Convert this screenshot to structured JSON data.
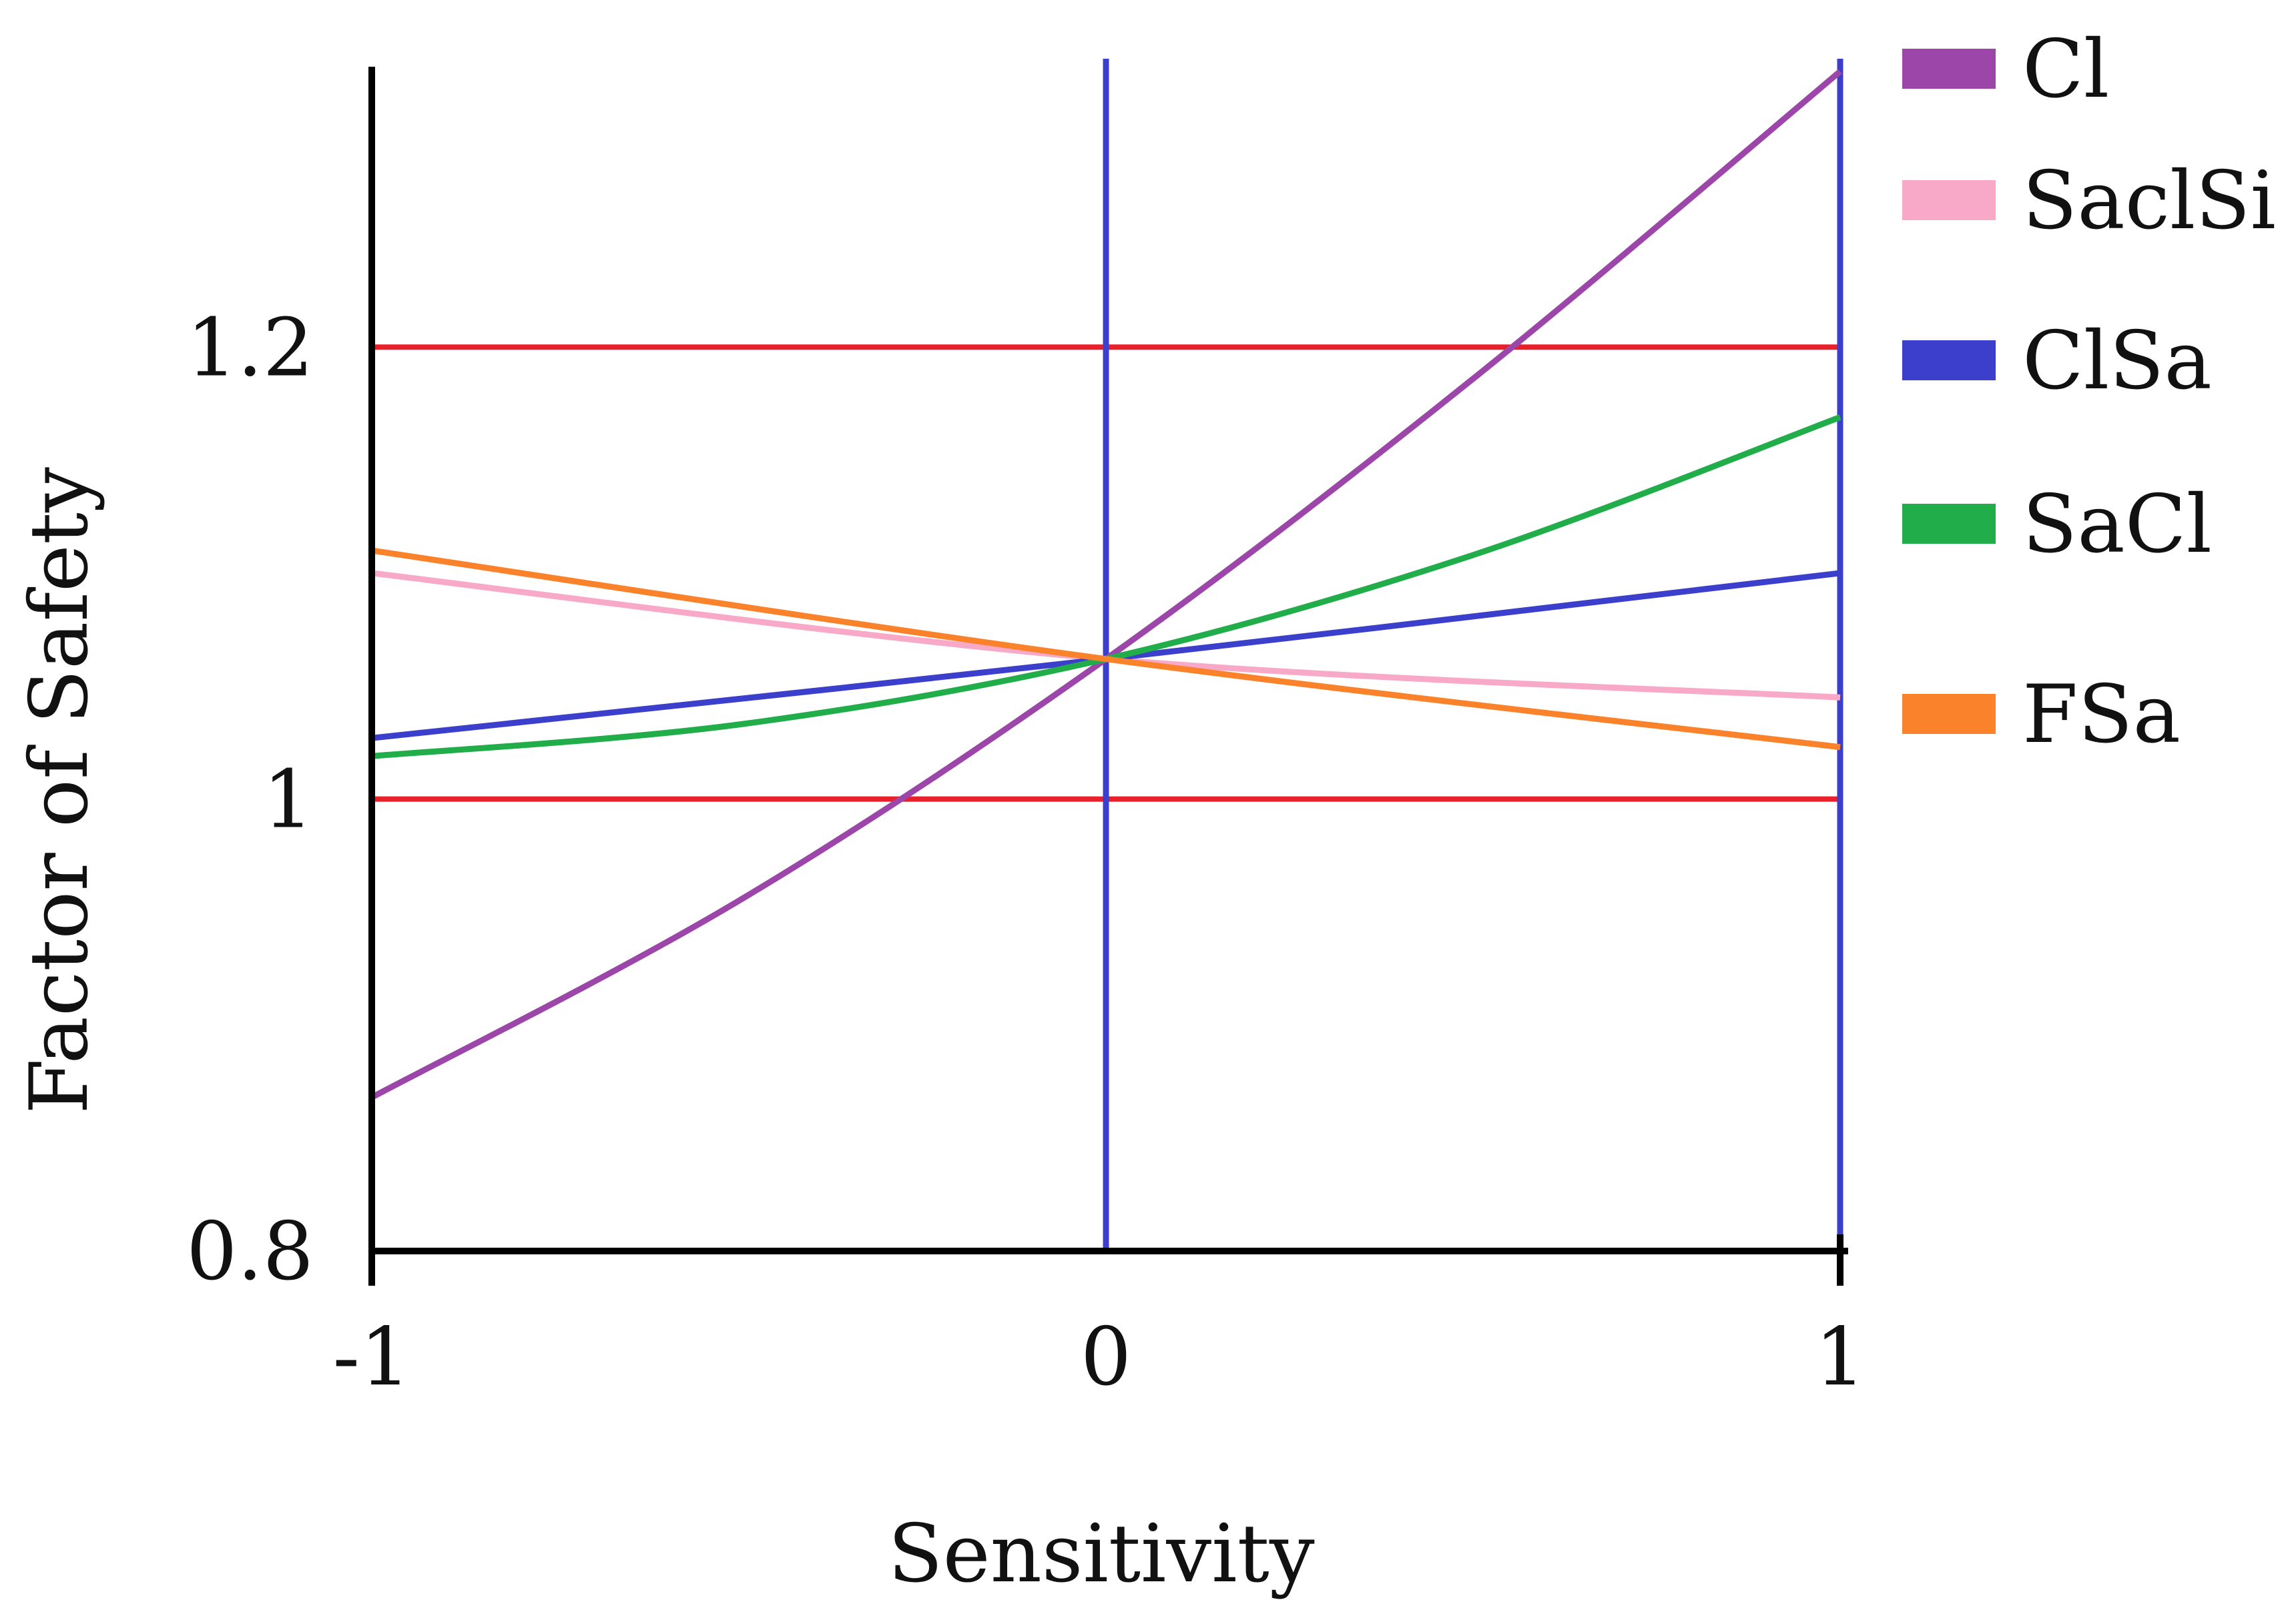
{
  "chart_data": {
    "type": "line",
    "xlabel": "Sensitivity",
    "ylabel": "Factor of Safety",
    "xlim": [
      -1,
      1
    ],
    "ylim": [
      0.8,
      1.33
    ],
    "x_ticks": [
      "-1",
      "0",
      "1"
    ],
    "y_ticks": [
      "0.8",
      "1",
      "1.2"
    ],
    "x_tick_values": [
      -1,
      0,
      1
    ],
    "y_tick_values": [
      0.8,
      1.0,
      1.2
    ],
    "grid": false,
    "legend_position": "right",
    "reference_lines": [
      {
        "orientation": "horizontal",
        "value": 1.2,
        "color": "#e8202a"
      },
      {
        "orientation": "horizontal",
        "value": 1.0,
        "color": "#e8202a"
      },
      {
        "orientation": "vertical",
        "value": 0,
        "color": "#3c3fcc"
      },
      {
        "orientation": "vertical",
        "value": 1,
        "color": "#3c3fcc"
      }
    ],
    "series": [
      {
        "name": "Cl",
        "color": "#9b46a8",
        "x": [
          -1,
          -0.5,
          0,
          0.5,
          1
        ],
        "y": [
          0.868,
          0.955,
          1.062,
          1.186,
          1.322
        ]
      },
      {
        "name": "SaclSi",
        "color": "#f8a9c8",
        "x": [
          -1,
          0,
          1
        ],
        "y": [
          1.1,
          1.062,
          1.045
        ]
      },
      {
        "name": "ClSa",
        "color": "#3c3fcc",
        "x": [
          -1,
          0,
          1
        ],
        "y": [
          1.027,
          1.062,
          1.1
        ]
      },
      {
        "name": "SaCl",
        "color": "#22ad4b",
        "x": [
          -1,
          -0.5,
          0,
          0.5,
          1
        ],
        "y": [
          1.019,
          1.033,
          1.062,
          1.108,
          1.169
        ]
      },
      {
        "name": "FSa",
        "color": "#f9822a",
        "x": [
          -1,
          0,
          1
        ],
        "y": [
          1.11,
          1.062,
          1.023
        ]
      }
    ]
  }
}
